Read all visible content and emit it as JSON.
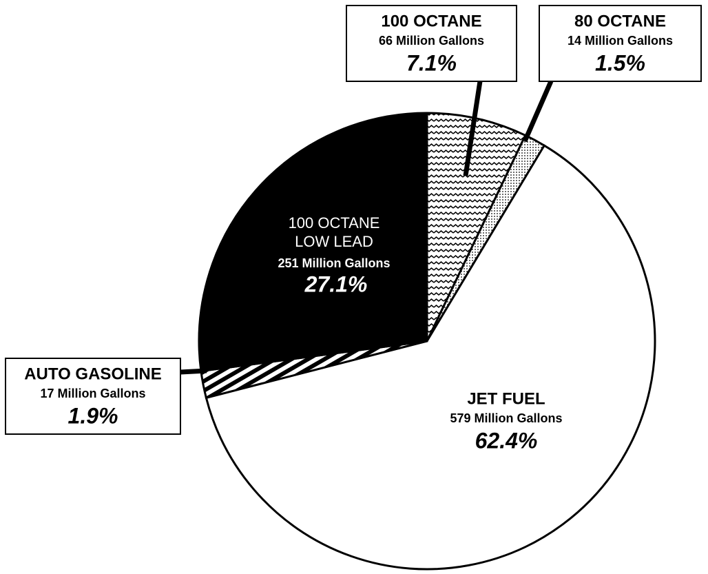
{
  "chart_data": {
    "type": "pie",
    "categories": [
      "100 OCTANE",
      "80 OCTANE",
      "JET FUEL",
      "AUTO GASOLINE",
      "100 OCTANE LOW LEAD"
    ],
    "values": [
      7.1,
      1.5,
      62.4,
      1.9,
      27.1
    ],
    "value_labels": [
      "7.1%",
      "1.5%",
      "62.4%",
      "1.9%",
      "27.1%"
    ],
    "gallons": [
      66,
      14,
      579,
      17,
      251
    ],
    "gallon_labels": [
      "66 Million Gallons",
      "14 Million Gallons",
      "579 Million Gallons",
      "17 Million Gallons",
      "251 Million Gallons"
    ],
    "colors": [
      "url(#waves)",
      "url(#dots)",
      "#ffffff",
      "url(#stripes)",
      "#000000"
    ]
  }
}
